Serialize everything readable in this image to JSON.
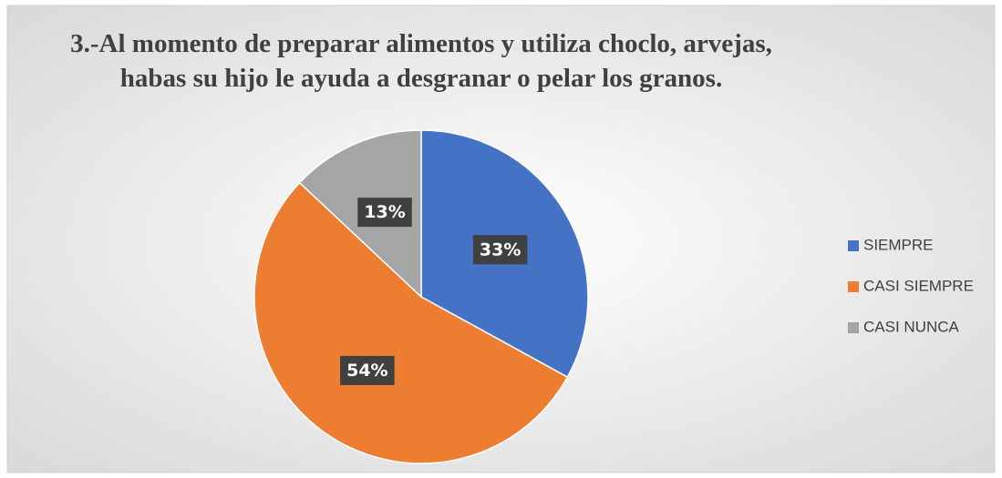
{
  "chart_data": {
    "type": "pie",
    "title": [
      "3.-Al momento de preparar alimentos y utiliza choclo, arvejas,",
      "habas su hijo le ayuda a desgranar o pelar los granos."
    ],
    "categories": [
      "SIEMPRE",
      "CASI SIEMPRE",
      "CASI NUNCA"
    ],
    "values": [
      33,
      54,
      13
    ],
    "value_labels": [
      "33%",
      "54%",
      "13%"
    ],
    "colors": [
      "#4472c4",
      "#ed7d31",
      "#a5a5a5"
    ],
    "legend": "right"
  }
}
